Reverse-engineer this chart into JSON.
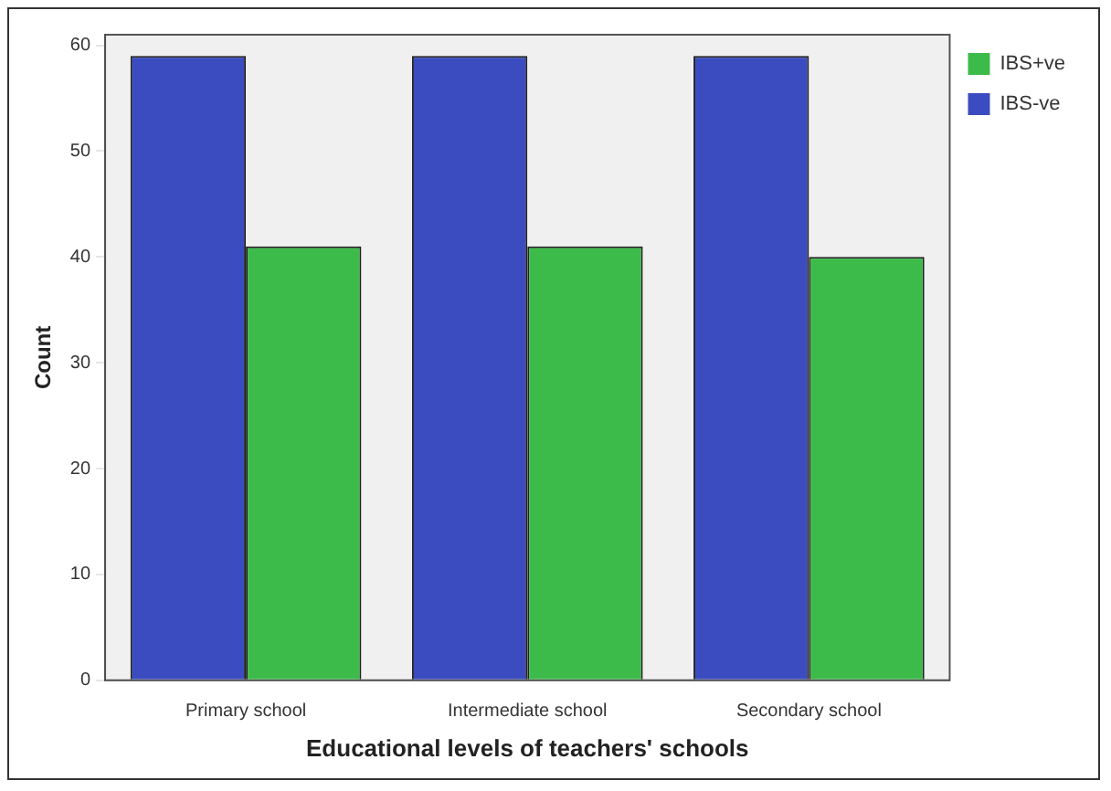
{
  "chart_data": {
    "type": "bar",
    "xlabel": "Educational levels of teachers' schools",
    "ylabel": "Count",
    "categories": [
      "Primary school",
      "Intermediate school",
      "Secondary school"
    ],
    "series": [
      {
        "name": "IBS-ve",
        "color": "#3b4cc0",
        "values": [
          59,
          59,
          59
        ]
      },
      {
        "name": "IBS+ve",
        "color": "#3dbb4a",
        "values": [
          41,
          41,
          40
        ]
      }
    ],
    "ylim": [
      0,
      61
    ],
    "yticks": [
      0,
      10,
      20,
      30,
      40,
      50,
      60
    ],
    "grid": false,
    "legend": "top right"
  }
}
